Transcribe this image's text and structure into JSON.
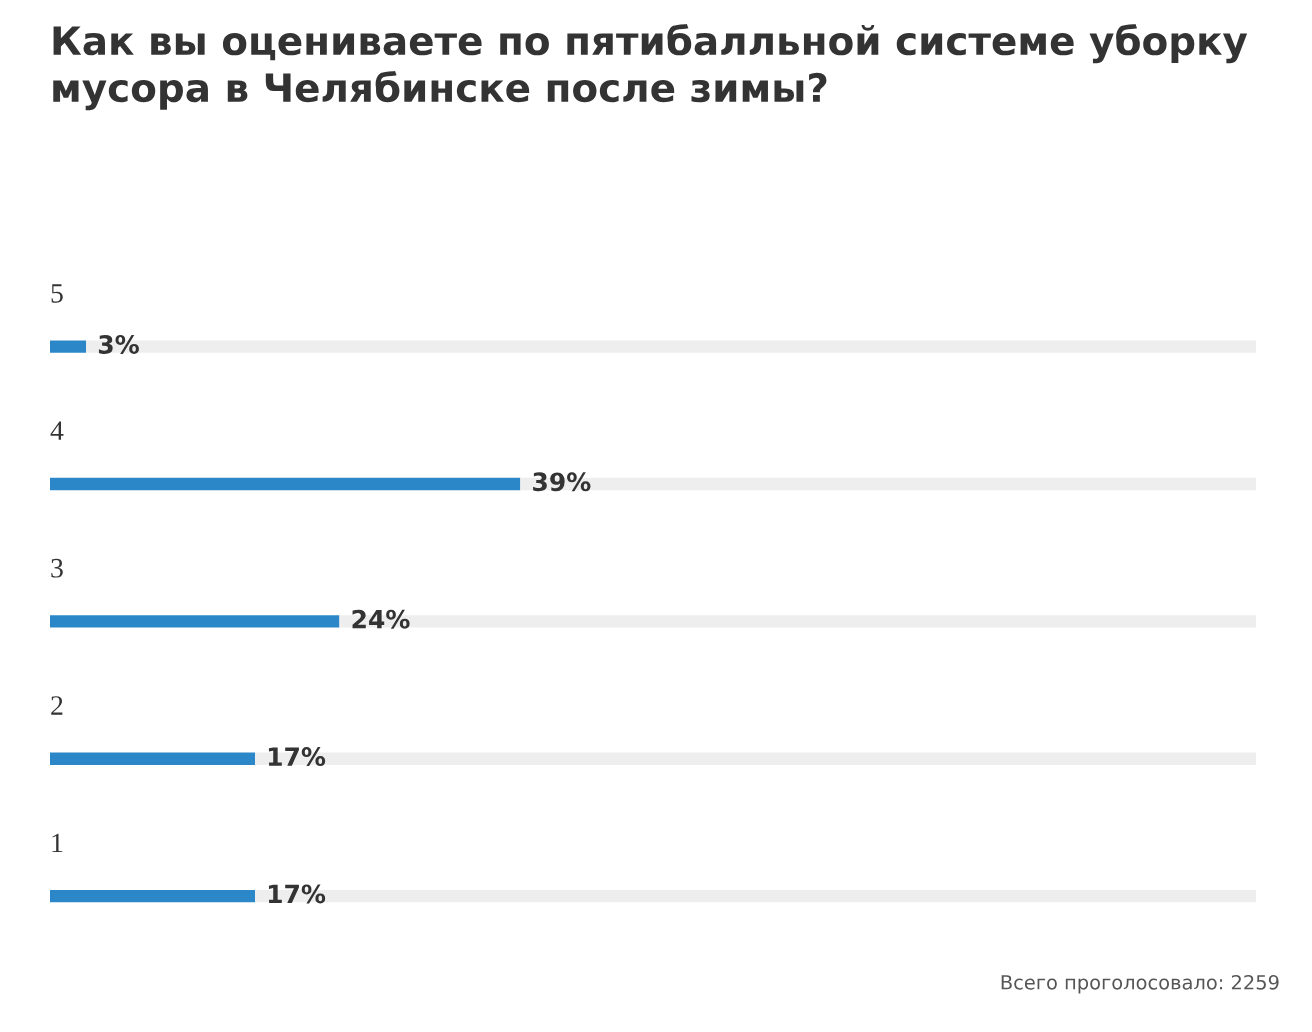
{
  "chart_data": {
    "type": "bar",
    "orientation": "horizontal",
    "stacked": true,
    "title": "Как вы оцениваете по пятибалльной системе уборку мусора в Челябинске после зимы?",
    "categories": [
      "5",
      "4",
      "3",
      "2",
      "1"
    ],
    "series": [
      {
        "color": "#2b87c8",
        "values": [
          3,
          39,
          24,
          17,
          17
        ],
        "value_labels": [
          "3%",
          "39%",
          "24%",
          "17%",
          "17%"
        ]
      },
      {
        "color": "#eeeeee",
        "values": [
          97,
          61,
          76,
          83,
          83
        ]
      }
    ],
    "xlim": [
      0,
      100
    ],
    "tick_labels": false,
    "legend": false,
    "annotations": [
      "Всего проголосовало: 2259"
    ]
  }
}
